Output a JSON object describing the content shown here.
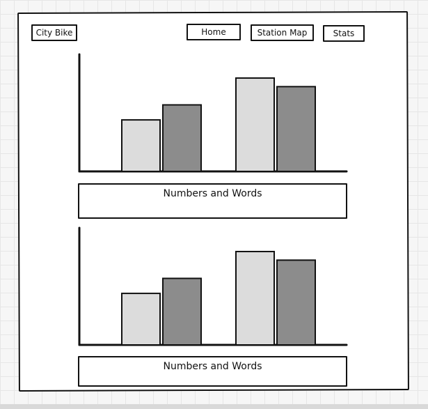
{
  "nav": {
    "brand": "City Bike",
    "items": [
      {
        "label": "Home"
      },
      {
        "label": "Station Map"
      },
      {
        "label": "Stats"
      }
    ]
  },
  "panels": [
    {
      "caption": "Numbers and Words"
    },
    {
      "caption": "Numbers and Words"
    }
  ],
  "colors": {
    "bar_light": "#dcdcdc",
    "bar_dark": "#8c8c8c",
    "stroke": "#111111"
  },
  "chart_data": [
    {
      "type": "bar",
      "categories": [
        "",
        ""
      ],
      "series": [
        {
          "values": [
            48,
            62
          ]
        },
        {
          "values": [
            87,
            79
          ]
        }
      ],
      "ylim": [
        0,
        100
      ],
      "grid": false
    },
    {
      "type": "bar",
      "categories": [
        "",
        ""
      ],
      "series": [
        {
          "values": [
            48,
            62
          ]
        },
        {
          "values": [
            87,
            79
          ]
        }
      ],
      "ylim": [
        0,
        100
      ],
      "grid": false
    }
  ]
}
